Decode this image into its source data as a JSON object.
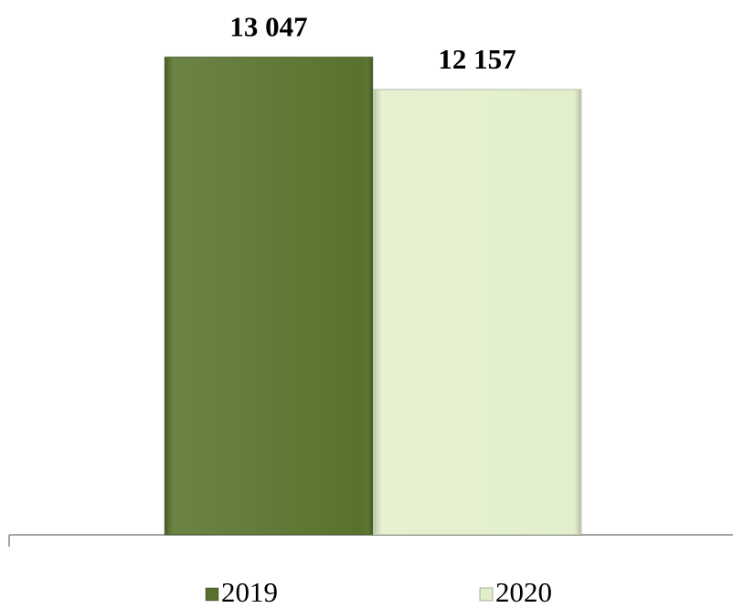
{
  "chart_data": {
    "type": "bar",
    "categories": [
      null
    ],
    "series": [
      {
        "name": "2019",
        "color": "#58722d",
        "values": [
          13047
        ],
        "value_labels": [
          "13 047"
        ]
      },
      {
        "name": "2020",
        "color": "#e2efcb",
        "values": [
          12157
        ],
        "value_labels": [
          "12 157"
        ]
      }
    ],
    "ylim": [
      0,
      14000
    ],
    "legend": "bottom"
  }
}
